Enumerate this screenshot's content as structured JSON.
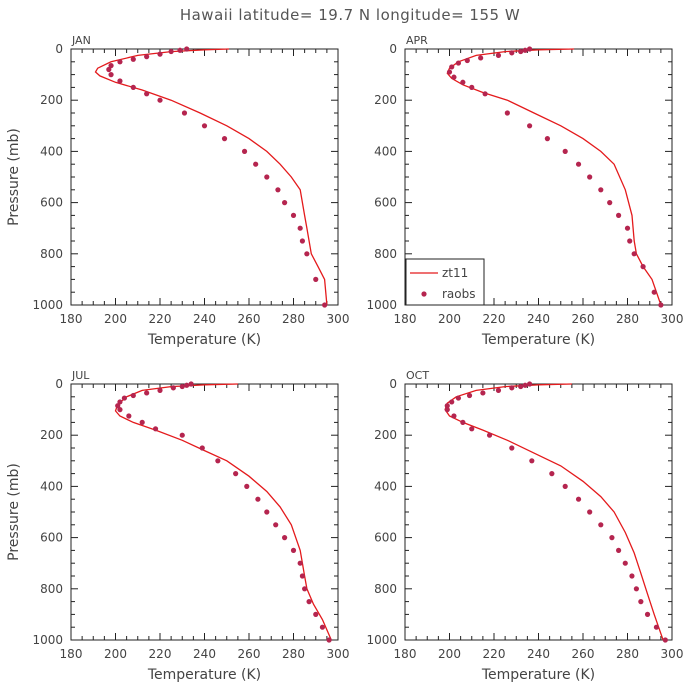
{
  "title": "Hawaii  latitude= 19.7 N longitude= 155 W",
  "colors": {
    "model": "#e41a1c",
    "obs": "#b5254f"
  },
  "legend": {
    "model_label": "zt11",
    "obs_label": "raobs"
  },
  "chart_data": [
    {
      "type": "line",
      "panel": "JAN",
      "xlabel": "Temperature (K)",
      "ylabel": "Pressure (mb)",
      "xlim": [
        180,
        300
      ],
      "ylim": [
        1000,
        0
      ],
      "xticks": [
        180,
        200,
        220,
        240,
        260,
        280,
        300
      ],
      "yticks": [
        0,
        200,
        400,
        600,
        800,
        1000
      ],
      "series": [
        {
          "name": "zt11",
          "kind": "line",
          "x": [
            251,
            240,
            225,
            210,
            198,
            192,
            191,
            193,
            200,
            212,
            225,
            238,
            250,
            260,
            268,
            274,
            279,
            283,
            285,
            286,
            288,
            291,
            294,
            295
          ],
          "y": [
            0,
            3,
            10,
            25,
            50,
            75,
            90,
            105,
            130,
            160,
            200,
            250,
            300,
            350,
            400,
            450,
            500,
            550,
            650,
            700,
            800,
            850,
            900,
            1000
          ]
        },
        {
          "name": "raobs",
          "kind": "scatter",
          "x": [
            232,
            229,
            225,
            220,
            214,
            208,
            202,
            198,
            197,
            198,
            202,
            208,
            214,
            220,
            231,
            240,
            249,
            258,
            263,
            268,
            273,
            276,
            280,
            283,
            284,
            286,
            290,
            294
          ],
          "y": [
            0,
            5,
            10,
            20,
            30,
            40,
            50,
            65,
            80,
            100,
            125,
            150,
            175,
            200,
            250,
            300,
            350,
            400,
            450,
            500,
            550,
            600,
            650,
            700,
            750,
            800,
            900,
            1000
          ]
        }
      ]
    },
    {
      "type": "line",
      "panel": "APR",
      "xlabel": "Temperature (K)",
      "ylabel": "Pressure (mb)",
      "xlim": [
        180,
        300
      ],
      "ylim": [
        1000,
        0
      ],
      "xticks": [
        180,
        200,
        220,
        240,
        260,
        280,
        300
      ],
      "yticks": [
        0,
        200,
        400,
        600,
        800,
        1000
      ],
      "series": [
        {
          "name": "zt11",
          "kind": "line",
          "x": [
            256,
            240,
            225,
            212,
            204,
            200,
            199,
            201,
            206,
            215,
            226,
            238,
            250,
            260,
            268,
            274,
            279,
            282,
            283,
            284,
            287,
            291,
            295
          ],
          "y": [
            0,
            3,
            10,
            25,
            50,
            75,
            95,
            115,
            140,
            170,
            200,
            250,
            300,
            350,
            400,
            450,
            550,
            650,
            750,
            800,
            850,
            900,
            1000
          ]
        },
        {
          "name": "raobs",
          "kind": "scatter",
          "x": [
            236,
            234,
            232,
            228,
            222,
            214,
            208,
            204,
            201,
            200,
            202,
            206,
            210,
            216,
            226,
            236,
            244,
            252,
            258,
            263,
            268,
            272,
            276,
            280,
            281,
            283,
            287,
            292,
            295
          ],
          "y": [
            0,
            5,
            10,
            15,
            25,
            35,
            45,
            55,
            70,
            90,
            110,
            130,
            150,
            175,
            250,
            300,
            350,
            400,
            450,
            500,
            550,
            600,
            650,
            700,
            750,
            800,
            850,
            950,
            1000
          ]
        }
      ]
    },
    {
      "type": "line",
      "panel": "JUL",
      "xlabel": "Temperature (K)",
      "ylabel": "Pressure (mb)",
      "xlim": [
        180,
        300
      ],
      "ylim": [
        1000,
        0
      ],
      "xticks": [
        180,
        200,
        220,
        240,
        260,
        280,
        300
      ],
      "yticks": [
        0,
        200,
        400,
        600,
        800,
        1000
      ],
      "series": [
        {
          "name": "zt11",
          "kind": "line",
          "x": [
            255,
            240,
            225,
            212,
            205,
            201,
            200,
            202,
            208,
            218,
            230,
            240,
            250,
            260,
            268,
            274,
            279,
            283,
            285,
            286,
            289,
            293,
            297
          ],
          "y": [
            0,
            3,
            10,
            25,
            50,
            80,
            105,
            125,
            150,
            180,
            220,
            260,
            300,
            360,
            420,
            480,
            550,
            650,
            750,
            800,
            860,
            920,
            1000
          ]
        },
        {
          "name": "raobs",
          "kind": "scatter",
          "x": [
            234,
            232,
            230,
            226,
            220,
            214,
            208,
            204,
            202,
            201,
            202,
            206,
            212,
            218,
            230,
            239,
            246,
            254,
            259,
            264,
            268,
            272,
            276,
            280,
            283,
            284,
            285,
            287,
            290,
            293,
            296
          ],
          "y": [
            0,
            5,
            10,
            15,
            25,
            35,
            45,
            55,
            70,
            85,
            100,
            125,
            150,
            175,
            200,
            250,
            300,
            350,
            400,
            450,
            500,
            550,
            600,
            650,
            700,
            750,
            800,
            850,
            900,
            950,
            1000
          ]
        }
      ]
    },
    {
      "type": "line",
      "panel": "OCT",
      "xlabel": "Temperature (K)",
      "ylabel": "Pressure (mb)",
      "xlim": [
        180,
        300
      ],
      "ylim": [
        1000,
        0
      ],
      "xticks": [
        180,
        200,
        220,
        240,
        260,
        280,
        300
      ],
      "yticks": [
        0,
        200,
        400,
        600,
        800,
        1000
      ],
      "series": [
        {
          "name": "zt11",
          "kind": "line",
          "x": [
            255,
            240,
            225,
            212,
            203,
            199,
            198,
            200,
            206,
            215,
            226,
            238,
            250,
            260,
            268,
            274,
            279,
            283,
            286,
            289,
            292,
            296
          ],
          "y": [
            0,
            3,
            10,
            25,
            50,
            75,
            100,
            125,
            150,
            180,
            220,
            270,
            320,
            380,
            440,
            500,
            580,
            660,
            740,
            820,
            900,
            1000
          ]
        },
        {
          "name": "raobs",
          "kind": "scatter",
          "x": [
            236,
            234,
            232,
            228,
            222,
            215,
            209,
            204,
            201,
            199,
            199,
            202,
            206,
            210,
            218,
            228,
            237,
            246,
            252,
            258,
            263,
            268,
            273,
            276,
            279,
            282,
            284,
            286,
            289,
            293,
            297
          ],
          "y": [
            0,
            5,
            10,
            15,
            25,
            35,
            45,
            55,
            70,
            85,
            100,
            125,
            150,
            175,
            200,
            250,
            300,
            350,
            400,
            450,
            500,
            550,
            600,
            650,
            700,
            750,
            800,
            850,
            900,
            950,
            1000
          ]
        }
      ]
    }
  ]
}
